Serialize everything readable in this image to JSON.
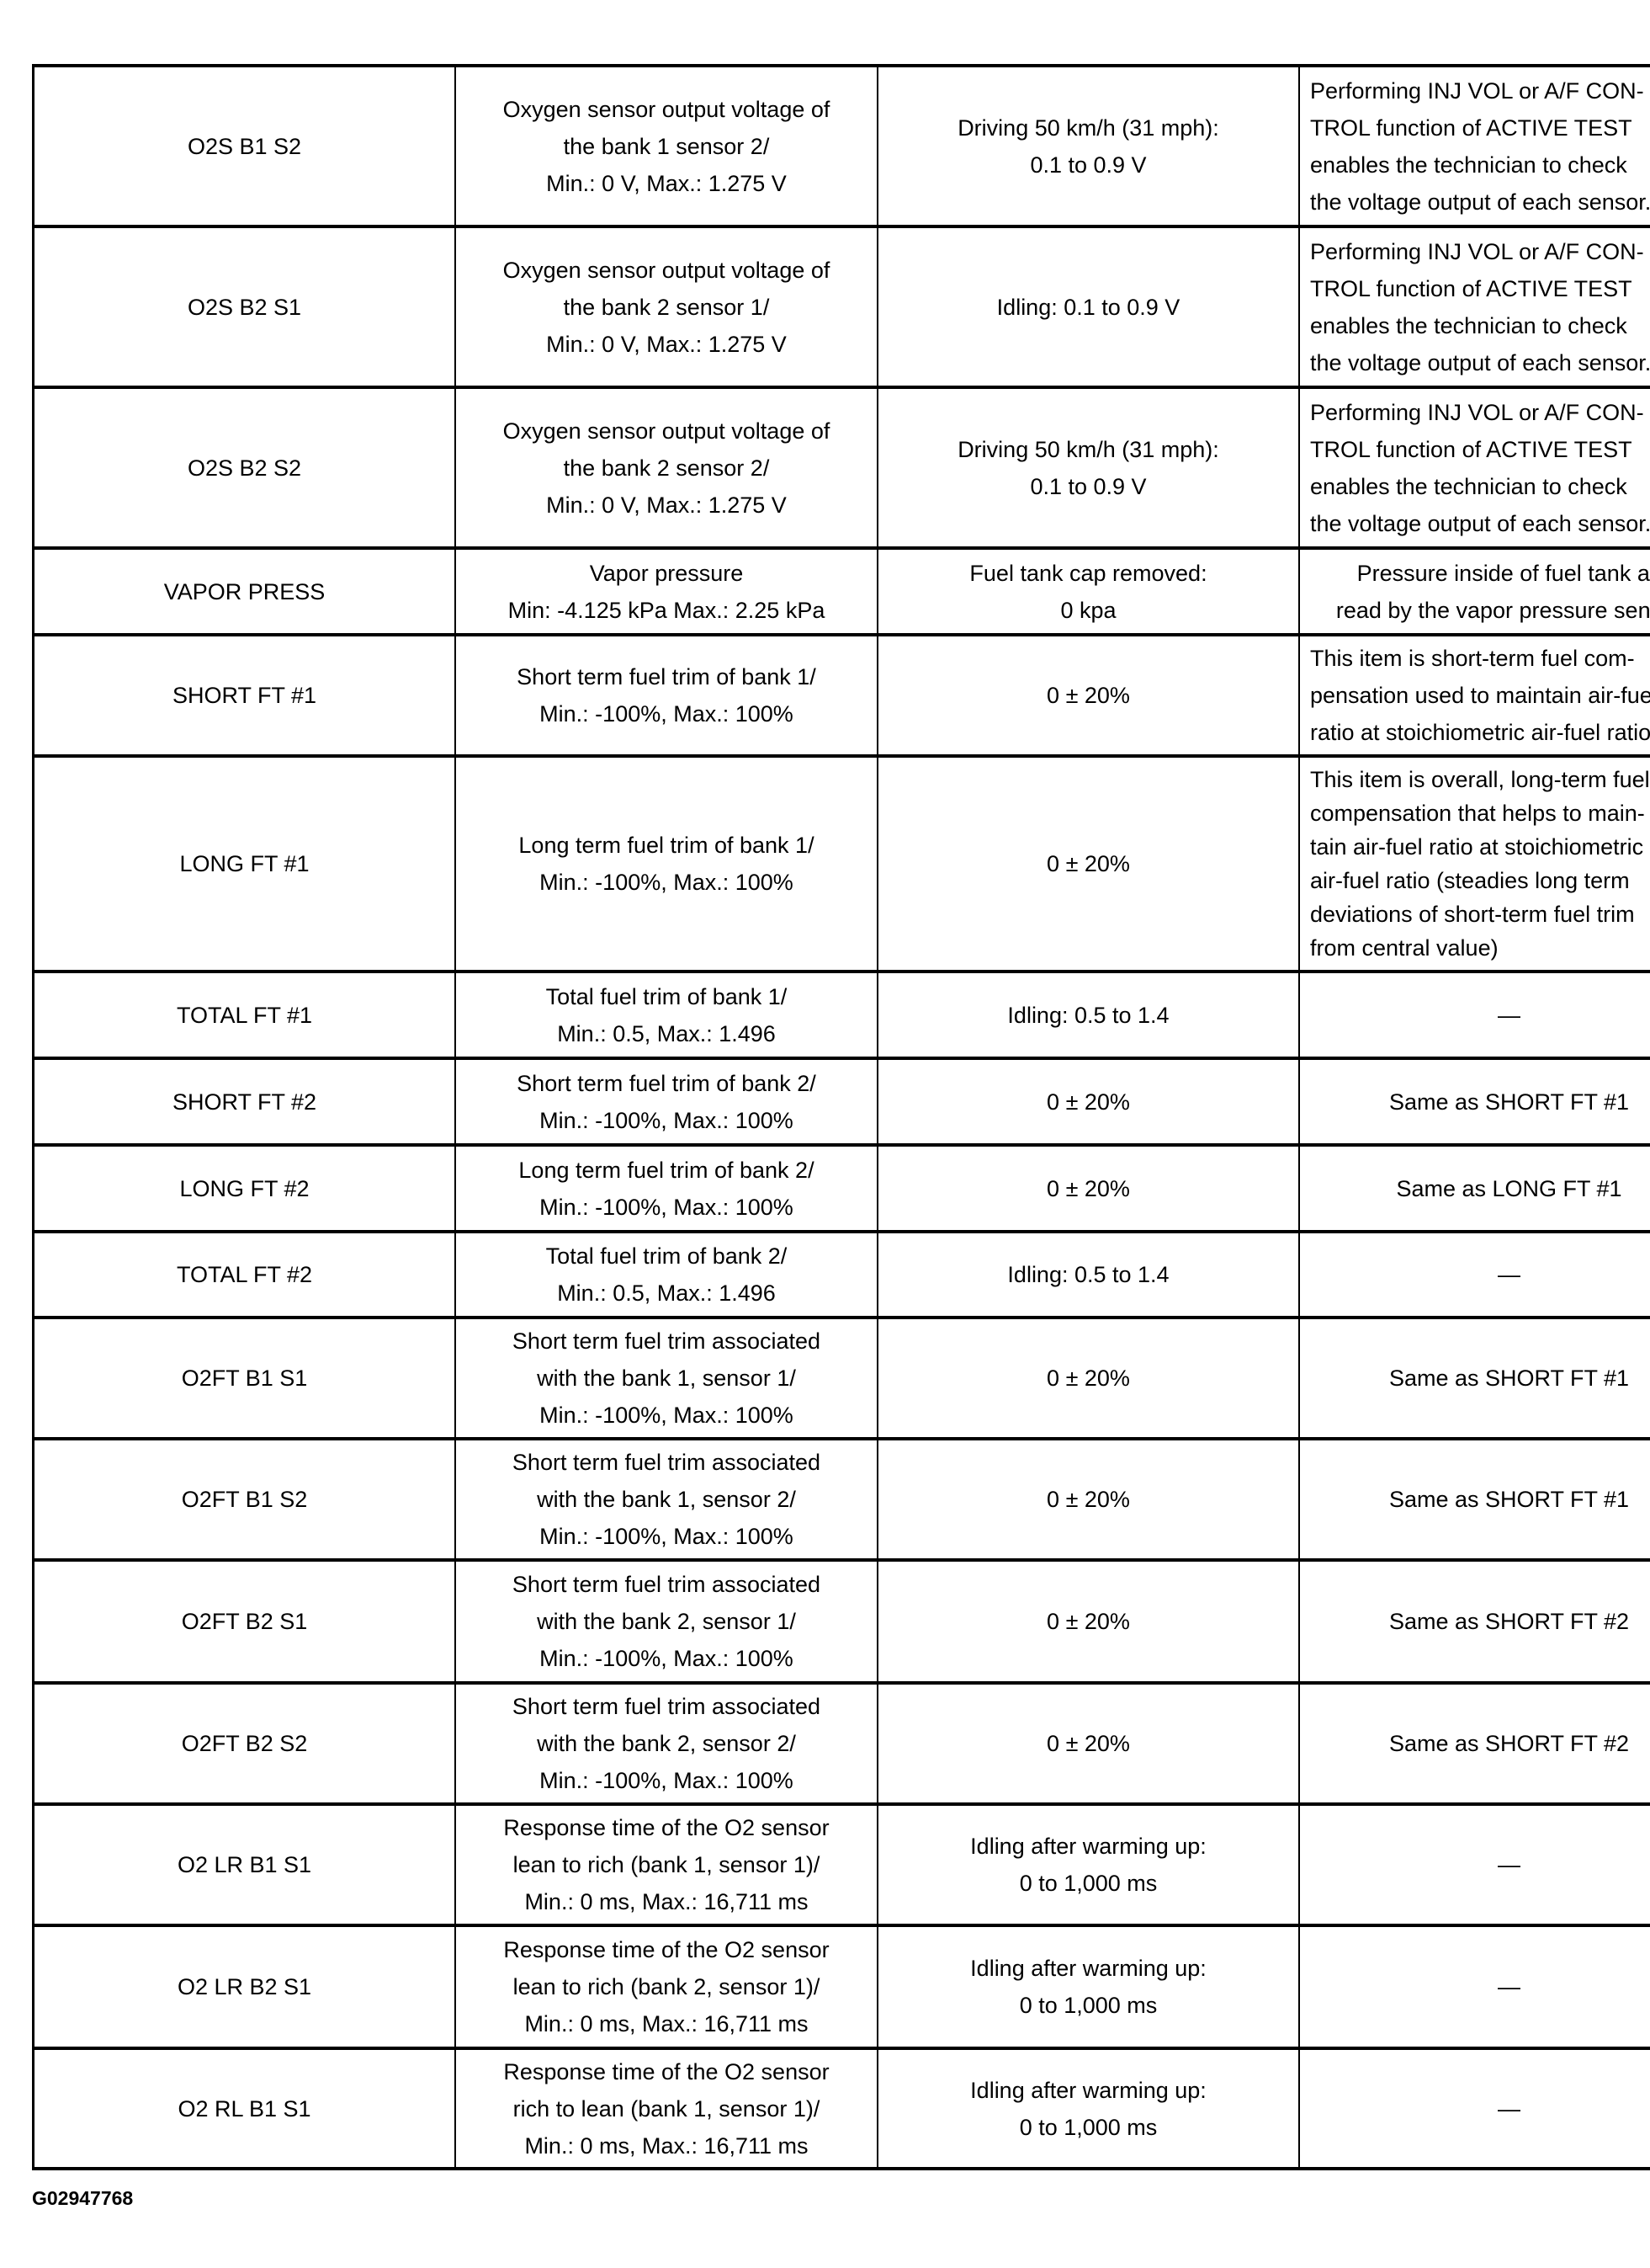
{
  "rows": [
    {
      "item": "O2S B1 S2",
      "measurement": "Oxygen sensor output voltage of\nthe bank 1 sensor 2/\nMin.: 0 V, Max.: 1.275 V",
      "normal": "Driving 50 km/h (31 mph):\n0.1 to 0.9 V",
      "note": "Performing INJ VOL or A/F CON-\nTROL function of ACTIVE TEST\nenables the technician to check\nthe voltage output of each sensor."
    },
    {
      "item": "O2S B2 S1",
      "measurement": "Oxygen sensor output voltage of\nthe bank 2 sensor 1/\nMin.: 0 V, Max.: 1.275 V",
      "normal": "Idling: 0.1 to 0.9 V",
      "note": "Performing INJ VOL or A/F CON-\nTROL function of ACTIVE TEST\nenables the technician to check\nthe voltage output of each sensor."
    },
    {
      "item": "O2S B2 S2",
      "measurement": "Oxygen sensor output voltage of\nthe bank 2 sensor 2/\nMin.: 0 V, Max.: 1.275 V",
      "normal": "Driving 50 km/h (31 mph):\n0.1 to 0.9 V",
      "note": "Performing INJ VOL or A/F CON-\nTROL function of ACTIVE TEST\nenables the technician to check\nthe voltage output of each sensor."
    },
    {
      "item": "VAPOR PRESS",
      "measurement": "Vapor pressure\nMin: -4.125 kPa Max.: 2.25 kPa",
      "normal": "Fuel tank cap removed:\n0 kpa",
      "note": "Pressure inside of fuel tank as\nread by the vapor pressure sensor"
    },
    {
      "item": "SHORT FT #1",
      "measurement": "Short term fuel trim of bank 1/\nMin.: -100%, Max.: 100%",
      "normal": "0 ± 20%",
      "note": "This item is short-term fuel com-\npensation used to maintain air-fuel\nratio at stoichiometric air-fuel ratio"
    },
    {
      "item": "LONG FT #1",
      "measurement": "Long term fuel trim of bank 1/\nMin.: -100%, Max.: 100%",
      "normal": "0 ± 20%",
      "note": "This item is overall, long-term fuel\ncompensation that helps to main-\ntain air-fuel ratio at stoichiometric\nair-fuel ratio (steadies long term\ndeviations of short-term fuel trim\nfrom central value)"
    },
    {
      "item": "TOTAL FT #1",
      "measurement": "Total fuel trim of bank 1/\nMin.: 0.5, Max.: 1.496",
      "normal": "Idling: 0.5 to 1.4",
      "note": "—"
    },
    {
      "item": "SHORT FT #2",
      "measurement": "Short term fuel trim of bank 2/\nMin.: -100%, Max.: 100%",
      "normal": "0 ± 20%",
      "note": "Same as SHORT FT #1"
    },
    {
      "item": "LONG FT #2",
      "measurement": "Long term fuel trim of bank 2/\nMin.: -100%, Max.: 100%",
      "normal": "0 ± 20%",
      "note": "Same as LONG FT #1"
    },
    {
      "item": "TOTAL FT #2",
      "measurement": "Total fuel trim of bank 2/\nMin.: 0.5, Max.: 1.496",
      "normal": "Idling: 0.5 to 1.4",
      "note": "—"
    },
    {
      "item": "O2FT B1 S1",
      "measurement": "Short term fuel trim associated\nwith the bank 1, sensor 1/\nMin.: -100%, Max.: 100%",
      "normal": "0 ± 20%",
      "note": "Same as SHORT FT #1"
    },
    {
      "item": "O2FT B1 S2",
      "measurement": "Short term fuel trim associated\nwith the bank 1, sensor 2/\nMin.: -100%, Max.: 100%",
      "normal": "0 ± 20%",
      "note": "Same as SHORT FT #1"
    },
    {
      "item": "O2FT B2 S1",
      "measurement": "Short term fuel trim associated\nwith the bank 2, sensor 1/\nMin.: -100%, Max.: 100%",
      "normal": "0 ± 20%",
      "note": "Same as SHORT FT #2"
    },
    {
      "item": "O2FT B2 S2",
      "measurement": "Short term fuel trim associated\nwith the bank 2, sensor 2/\nMin.: -100%, Max.: 100%",
      "normal": "0 ± 20%",
      "note": "Same as SHORT FT #2"
    },
    {
      "item": "O2 LR B1 S1",
      "measurement": "Response time of the O2 sensor\nlean to rich (bank 1, sensor 1)/\nMin.: 0 ms, Max.: 16,711 ms",
      "normal": "Idling after warming up:\n0 to 1,000 ms",
      "note": "—"
    },
    {
      "item": "O2 LR B2 S1",
      "measurement": "Response time of the O2 sensor\nlean to rich (bank 2, sensor 1)/\nMin.: 0 ms, Max.: 16,711 ms",
      "normal": "Idling after warming up:\n0 to 1,000 ms",
      "note": "—"
    },
    {
      "item": "O2 RL B1 S1",
      "measurement": "Response time of the O2 sensor\nrich to lean (bank 1, sensor 1)/\nMin.: 0 ms, Max.: 16,711 ms",
      "normal": "Idling after warming up:\n0 to 1,000 ms",
      "note": "—"
    }
  ],
  "caption": "G02947768"
}
